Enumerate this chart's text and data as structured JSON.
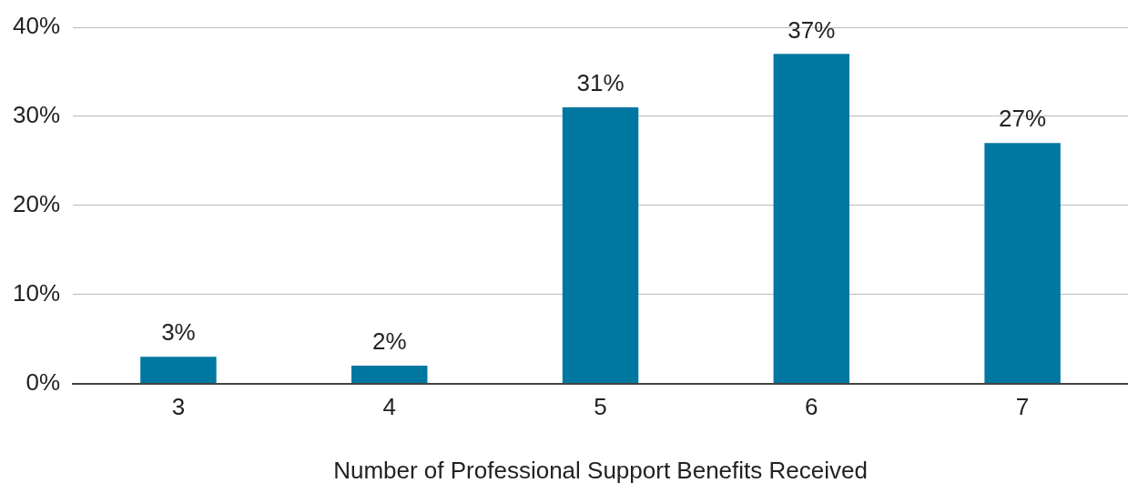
{
  "chart_data": {
    "type": "bar",
    "xlabel": "Number of Professional Support Benefits Received",
    "categories": [
      "3",
      "4",
      "5",
      "6",
      "7"
    ],
    "values": [
      3,
      2,
      31,
      37,
      27
    ],
    "color": "#0077a0",
    "ylim": [
      0,
      40
    ],
    "yticks": [
      {
        "value": 0,
        "label": "0%"
      },
      {
        "value": 10,
        "label": "10%"
      },
      {
        "value": 20,
        "label": "20%"
      },
      {
        "value": 30,
        "label": "30%"
      },
      {
        "value": 40,
        "label": "40%"
      }
    ],
    "grid": "y",
    "legend": false,
    "data_labels": true,
    "value_labels": [
      "3%",
      "2%",
      "31%",
      "37%",
      "27%"
    ]
  }
}
